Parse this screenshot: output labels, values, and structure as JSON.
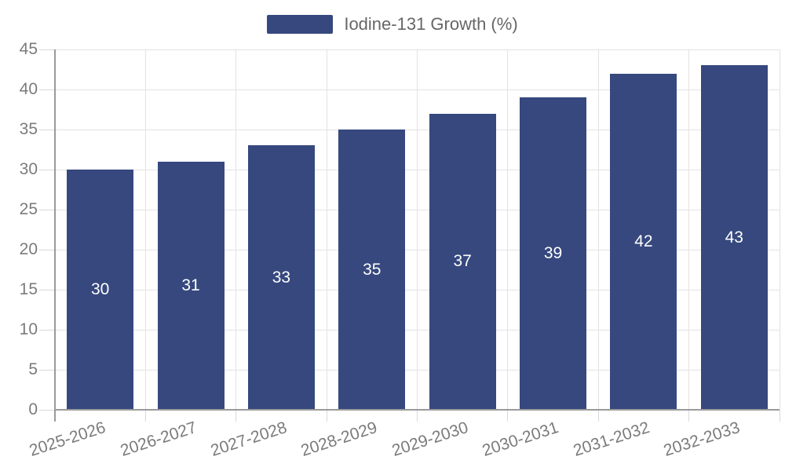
{
  "chart_data": {
    "type": "bar",
    "title": "",
    "xlabel": "",
    "ylabel": "",
    "categories": [
      "2025-2026",
      "2026-2027",
      "2027-2028",
      "2028-2029",
      "2029-2030",
      "2030-2031",
      "2031-2032",
      "2032-2033"
    ],
    "series": [
      {
        "name": "Iodine-131 Growth (%)",
        "values": [
          30,
          31,
          33,
          35,
          37,
          39,
          42,
          43
        ]
      }
    ],
    "bar_value_labels": [
      "30",
      "31",
      "33",
      "35",
      "37",
      "39",
      "42",
      "43"
    ],
    "ylim": [
      0,
      45
    ],
    "ytick_step": 5,
    "yticks": [
      "0",
      "5",
      "10",
      "15",
      "20",
      "25",
      "30",
      "35",
      "40",
      "45"
    ],
    "grid": true,
    "legend_position": "top-center",
    "colors": {
      "bar": "#36487e",
      "value_label": "#ffffff",
      "axis_label": "#7b7b7b",
      "legend_text": "#666666",
      "grid_line": "#e2e2e2",
      "tick_line": "#d8d8d8",
      "axis_line": "#9a9a9a",
      "background": "#ffffff"
    }
  }
}
